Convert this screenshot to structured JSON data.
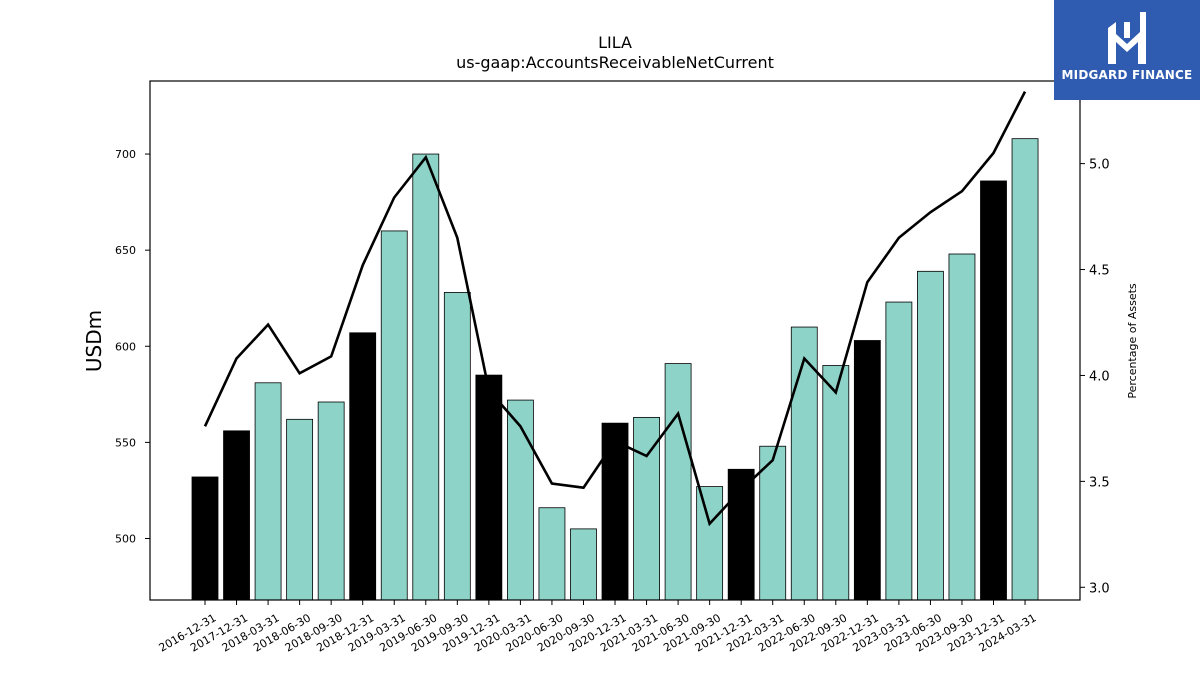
{
  "chart_data": {
    "type": "bar",
    "title": "LILA",
    "subtitle": "us-gaap:AccountsReceivableNetCurrent",
    "ylabel": "USDm",
    "y2label": "Percentage of Assets",
    "ylim": [
      468,
      738
    ],
    "y2lim": [
      2.94,
      5.39
    ],
    "yticks": [
      500,
      550,
      600,
      650,
      700
    ],
    "y2ticks": [
      "3.0",
      "3.5",
      "4.0",
      "4.5",
      "5.0"
    ],
    "categories": [
      "2016-12-31",
      "2017-12-31",
      "2018-03-31",
      "2018-06-30",
      "2018-09-30",
      "2018-12-31",
      "2019-03-31",
      "2019-06-30",
      "2019-09-30",
      "2019-12-31",
      "2020-03-31",
      "2020-06-30",
      "2020-09-30",
      "2020-12-31",
      "2021-03-31",
      "2021-06-30",
      "2021-09-30",
      "2021-12-31",
      "2022-03-31",
      "2022-06-30",
      "2022-09-30",
      "2022-12-31",
      "2023-03-31",
      "2023-06-30",
      "2023-09-30",
      "2023-12-31",
      "2024-03-31"
    ],
    "series": [
      {
        "values": [
          532,
          556,
          581,
          562,
          571,
          607,
          660,
          700,
          628,
          585,
          572,
          516,
          505,
          560,
          563,
          591,
          527,
          536,
          548,
          610,
          590,
          603,
          623,
          639,
          648,
          686,
          708
        ],
        "highlight": [
          true,
          true,
          false,
          false,
          false,
          true,
          false,
          false,
          false,
          true,
          false,
          false,
          false,
          true,
          false,
          false,
          false,
          true,
          false,
          false,
          false,
          true,
          false,
          false,
          false,
          true,
          false
        ],
        "colors": {
          "highlight": "#000000",
          "normal": "#8dd3c7"
        }
      },
      {
        "axis": "right",
        "values": [
          3.76,
          4.08,
          4.24,
          4.01,
          4.09,
          4.52,
          4.84,
          5.03,
          4.65,
          3.93,
          3.76,
          3.49,
          3.47,
          3.69,
          3.62,
          3.82,
          3.3,
          3.46,
          3.6,
          4.08,
          3.92,
          4.44,
          4.65,
          4.77,
          4.87,
          5.05,
          5.34
        ],
        "color": "#000000"
      }
    ]
  },
  "logo": {
    "text": "MIDGARD FINANCE",
    "color": "#2f5bb0"
  }
}
